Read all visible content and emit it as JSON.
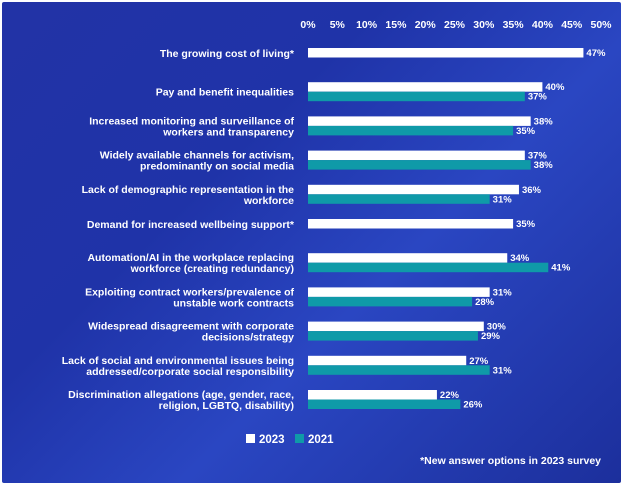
{
  "chart_data": {
    "type": "bar",
    "orientation": "horizontal",
    "xlim": [
      0,
      50
    ],
    "ticks": [
      "0%",
      "5%",
      "10%",
      "15%",
      "20%",
      "25%",
      "30%",
      "35%",
      "40%",
      "45%",
      "50%"
    ],
    "categories": [
      [
        "The growing cost of living*"
      ],
      [
        "Pay and benefit inequalities"
      ],
      [
        "Increased monitoring and surveillance of",
        "workers and transparency"
      ],
      [
        "Widely available channels for activism,",
        "predominantly on social media"
      ],
      [
        "Lack of demographic representation in the",
        "workforce"
      ],
      [
        "Demand for increased wellbeing support*"
      ],
      [
        "Automation/AI in the workplace replacing",
        "workforce (creating redundancy)"
      ],
      [
        "Exploiting contract workers/prevalence of",
        "unstable work contracts"
      ],
      [
        "Widespread disagreement with corporate",
        "decisions/strategy"
      ],
      [
        "Lack of social and environmental issues being",
        "addressed/corporate social responsibility"
      ],
      [
        "Discrimination allegations (age, gender, race,",
        "religion, LGBTQ, disability)"
      ]
    ],
    "series": [
      {
        "name": "2023",
        "color": "#ffffff",
        "values": [
          47,
          40,
          38,
          37,
          36,
          35,
          34,
          31,
          30,
          27,
          22
        ]
      },
      {
        "name": "2021",
        "color": "#0f9aa8",
        "values": [
          null,
          37,
          35,
          38,
          31,
          null,
          41,
          28,
          29,
          31,
          26
        ]
      }
    ],
    "legend": [
      "2023",
      "2021"
    ],
    "footnote": "*New answer options in 2023 survey"
  }
}
